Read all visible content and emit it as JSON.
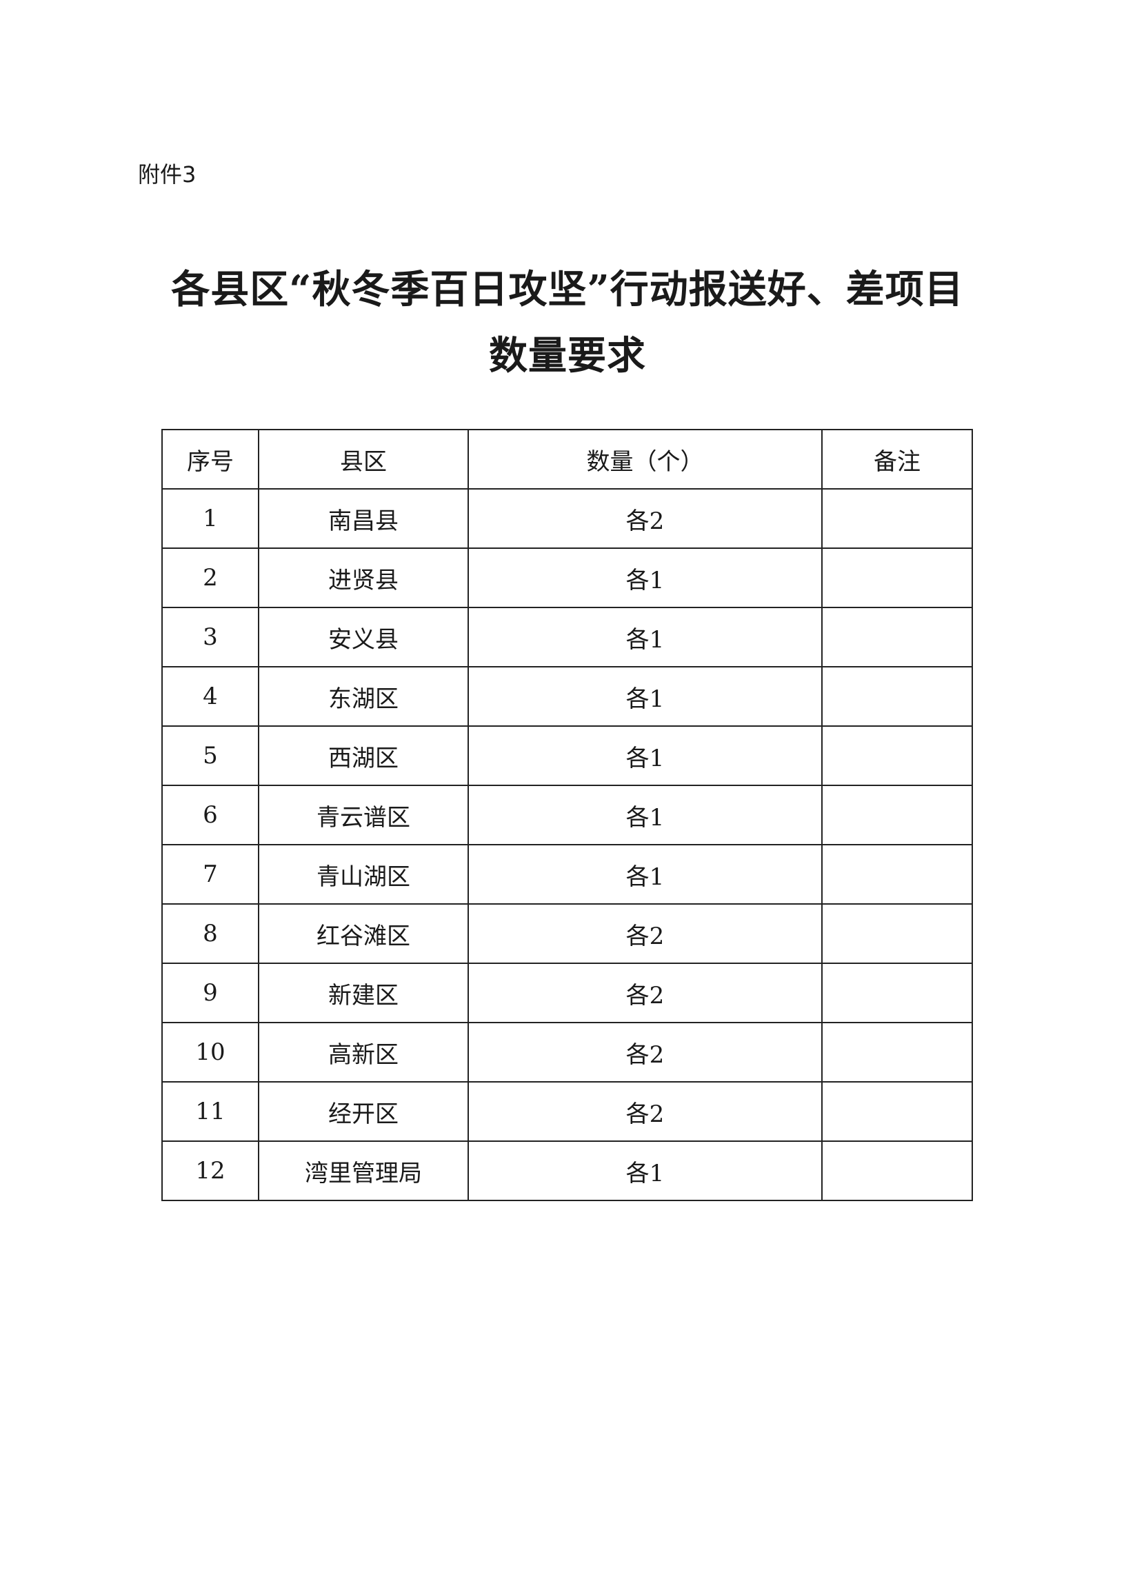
{
  "attachment_label": "附件3",
  "title_line1": "各县区“秋冬季百日攻坚”行动报送好、差项目",
  "title_line2": "数量要求",
  "table": {
    "headers": [
      "序号",
      "县区",
      "数量（个）",
      "备注"
    ],
    "rows": [
      {
        "no": "1",
        "district": "南昌县",
        "count": "各2",
        "note": ""
      },
      {
        "no": "2",
        "district": "进贤县",
        "count": "各1",
        "note": ""
      },
      {
        "no": "3",
        "district": "安义县",
        "count": "各1",
        "note": ""
      },
      {
        "no": "4",
        "district": "东湖区",
        "count": "各1",
        "note": ""
      },
      {
        "no": "5",
        "district": "西湖区",
        "count": "各1",
        "note": ""
      },
      {
        "no": "6",
        "district": "青云谱区",
        "count": "各1",
        "note": ""
      },
      {
        "no": "7",
        "district": "青山湖区",
        "count": "各1",
        "note": ""
      },
      {
        "no": "8",
        "district": "红谷滩区",
        "count": "各2",
        "note": ""
      },
      {
        "no": "9",
        "district": "新建区",
        "count": "各2",
        "note": ""
      },
      {
        "no": "10",
        "district": "高新区",
        "count": "各2",
        "note": ""
      },
      {
        "no": "11",
        "district": "经开区",
        "count": "各2",
        "note": ""
      },
      {
        "no": "12",
        "district": "湾里管理局",
        "count": "各1",
        "note": ""
      }
    ]
  }
}
